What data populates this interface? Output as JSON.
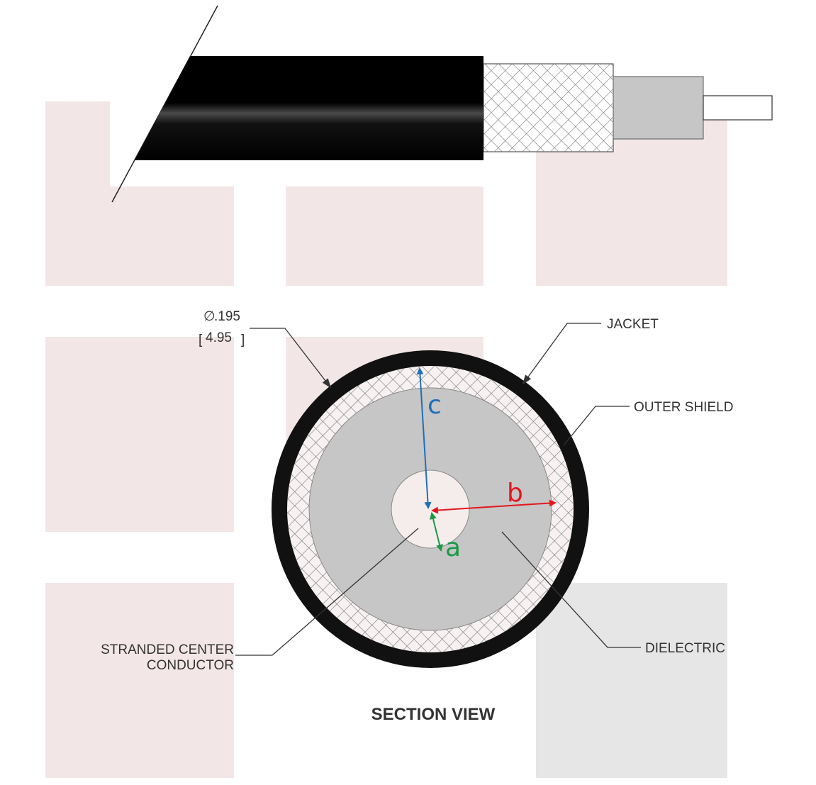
{
  "diagram": {
    "title": "SECTION VIEW",
    "diameter": {
      "symbol": "∅",
      "inches": ".195",
      "millimeters": "4.95",
      "bracket_open": "[",
      "bracket_close": "]"
    },
    "callouts": {
      "jacket": "JACKET",
      "outer_shield": "OUTER SHIELD",
      "dielectric": "DIELECTRIC",
      "center_conductor_line1": "STRANDED CENTER",
      "center_conductor_line2": "CONDUCTOR"
    },
    "radius_labels": {
      "a": "a",
      "b": "b",
      "c": "c"
    },
    "colors": {
      "jacket": "#111111",
      "shield_fill": "#ffffff",
      "shield_hatch": "#666666",
      "dielectric": "#c6c6c6",
      "leader": "#333333",
      "radius_a": "#1a9b44",
      "radius_b": "#e3161c",
      "radius_c": "#1f6fba",
      "background_block": "#f3e6e6",
      "background_block_grey": "#e6e6e6"
    }
  }
}
